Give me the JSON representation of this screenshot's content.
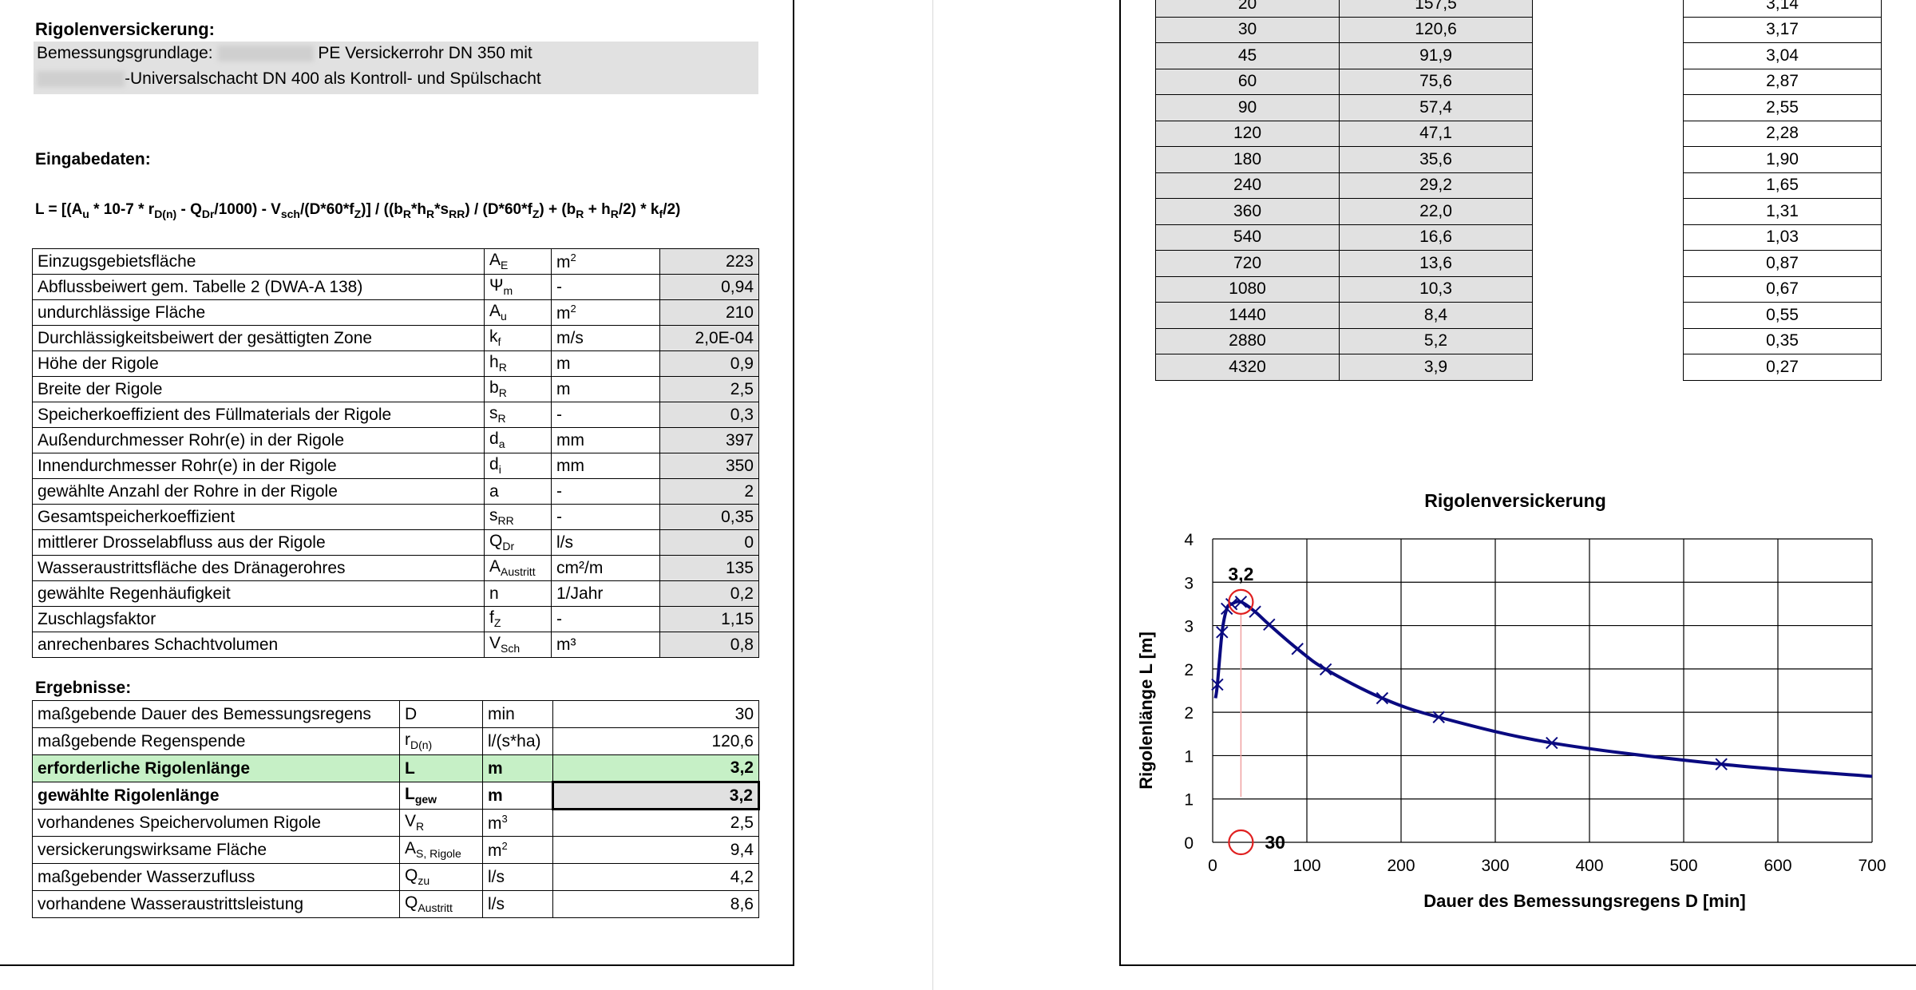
{
  "left": {
    "heading": "Rigolenversickerung:",
    "basis_prefix": "Bemessungsgrundlage:",
    "basis_line1": "PE Versickerrohr DN 350 mit",
    "basis_line2": "-Universalschacht DN 400 als Kontroll- und Spülschacht",
    "input_heading": "Eingabedaten:",
    "formula": "L = [(Au * 10-7 * rD(n) - QDr/1000) - Vsch/(D*60*fZ)] / ((bR*hR*sRR) / (D*60*fZ) + (bR + hR/2) * kf/2)",
    "inputs": [
      {
        "label": "Einzugsgebietsfläche",
        "sym": "A",
        "sub": "E",
        "unit": "m",
        "sup": "2",
        "value": "223"
      },
      {
        "label": "Abflussbeiwert gem. Tabelle 2 (DWA-A 138)",
        "sym": "Ψ",
        "sub": "m",
        "unit": "-",
        "sup": "",
        "value": "0,94"
      },
      {
        "label": "undurchlässige Fläche",
        "sym": "A",
        "sub": "u",
        "unit": "m",
        "sup": "2",
        "value": "210"
      },
      {
        "label": "Durchlässigkeitsbeiwert der gesättigten Zone",
        "sym": "k",
        "sub": "f",
        "unit": "m/s",
        "sup": "",
        "value": "2,0E-04"
      },
      {
        "label": "Höhe der Rigole",
        "sym": "h",
        "sub": "R",
        "unit": "m",
        "sup": "",
        "value": "0,9"
      },
      {
        "label": "Breite der Rigole",
        "sym": "b",
        "sub": "R",
        "unit": "m",
        "sup": "",
        "value": "2,5"
      },
      {
        "label": "Speicherkoeffizient des Füllmaterials der Rigole",
        "sym": "s",
        "sub": "R",
        "unit": "-",
        "sup": "",
        "value": "0,3"
      },
      {
        "label": "Außendurchmesser Rohr(e) in der Rigole",
        "sym": "d",
        "sub": "a",
        "unit": "mm",
        "sup": "",
        "value": "397"
      },
      {
        "label": "Innendurchmesser Rohr(e) in der Rigole",
        "sym": "d",
        "sub": "i",
        "unit": "mm",
        "sup": "",
        "value": "350"
      },
      {
        "label": "gewählte Anzahl der Rohre in der Rigole",
        "sym": "a",
        "sub": "",
        "unit": "-",
        "sup": "",
        "value": "2"
      },
      {
        "label": "Gesamtspeicherkoeffizient",
        "sym": "s",
        "sub": "RR",
        "unit": "-",
        "sup": "",
        "value": "0,35"
      },
      {
        "label": "mittlerer Drosselabfluss aus der Rigole",
        "sym": "Q",
        "sub": "Dr",
        "unit": "l/s",
        "sup": "",
        "value": "0"
      },
      {
        "label": "Wasseraustrittsfläche des Dränagerohres",
        "sym": "A",
        "sub": "Austritt",
        "unit": "cm²/m",
        "sup": "",
        "value": "135"
      },
      {
        "label": "gewählte Regenhäufigkeit",
        "sym": "n",
        "sub": "",
        "unit": "1/Jahr",
        "sup": "",
        "value": "0,2"
      },
      {
        "label": "Zuschlagsfaktor",
        "sym": "f",
        "sub": "Z",
        "unit": "-",
        "sup": "",
        "value": "1,15"
      },
      {
        "label": "anrechenbares Schachtvolumen",
        "sym": "V",
        "sub": "Sch",
        "unit": "m³",
        "sup": "",
        "value": "0,8"
      }
    ],
    "results_heading": "Ergebnisse:",
    "results": [
      {
        "label": "maßgebende Dauer des Bemessungsregens",
        "sym": "D",
        "sub": "",
        "unit": "min",
        "sup": "",
        "value": "30",
        "style": ""
      },
      {
        "label": "maßgebende Regenspende",
        "sym": "r",
        "sub": "D(n)",
        "unit": "l/(s*ha)",
        "sup": "",
        "value": "120,6",
        "style": ""
      },
      {
        "label": "erforderliche Rigolenlänge",
        "sym": "L",
        "sub": "",
        "unit": "m",
        "sup": "",
        "value": "3,2",
        "style": "green"
      },
      {
        "label": "gewählte Rigolenlänge",
        "sym": "L",
        "sub": "gew",
        "unit": "m",
        "sup": "",
        "value": "3,2",
        "style": "bold"
      },
      {
        "label": "vorhandenes Speichervolumen Rigole",
        "sym": "V",
        "sub": "R",
        "unit": "m",
        "sup": "3",
        "value": "2,5",
        "style": ""
      },
      {
        "label": "versickerungswirksame Fläche",
        "sym": "A",
        "sub": "S, Rigole",
        "unit": "m",
        "sup": "2",
        "value": "9,4",
        "style": ""
      },
      {
        "label": "maßgebender Wasserzufluss",
        "sym": "Q",
        "sub": "zu",
        "unit": "l/s",
        "sup": "",
        "value": "4,2",
        "style": ""
      },
      {
        "label": "vorhandene Wasseraustrittsleistung",
        "sym": "Q",
        "sub": "Austritt",
        "unit": "l/s",
        "sup": "",
        "value": "8,6",
        "style": ""
      }
    ]
  },
  "right": {
    "rain_table": [
      {
        "d": "20",
        "r": "157,5",
        "l": "3,14"
      },
      {
        "d": "30",
        "r": "120,6",
        "l": "3,17"
      },
      {
        "d": "45",
        "r": "91,9",
        "l": "3,04"
      },
      {
        "d": "60",
        "r": "75,6",
        "l": "2,87"
      },
      {
        "d": "90",
        "r": "57,4",
        "l": "2,55"
      },
      {
        "d": "120",
        "r": "47,1",
        "l": "2,28"
      },
      {
        "d": "180",
        "r": "35,6",
        "l": "1,90"
      },
      {
        "d": "240",
        "r": "29,2",
        "l": "1,65"
      },
      {
        "d": "360",
        "r": "22,0",
        "l": "1,31"
      },
      {
        "d": "540",
        "r": "16,6",
        "l": "1,03"
      },
      {
        "d": "720",
        "r": "13,6",
        "l": "0,87"
      },
      {
        "d": "1080",
        "r": "10,3",
        "l": "0,67"
      },
      {
        "d": "1440",
        "r": "8,4",
        "l": "0,55"
      },
      {
        "d": "2880",
        "r": "5,2",
        "l": "0,35"
      },
      {
        "d": "4320",
        "r": "3,9",
        "l": "0,27"
      }
    ]
  },
  "chart_data": {
    "type": "line",
    "title": "Rigolenversickerung",
    "xlabel": "Dauer des Bemessungsregens  D [min]",
    "ylabel": "Rigolenlänge L [m]",
    "xlim": [
      0,
      700
    ],
    "ylim": [
      0,
      4
    ],
    "x_ticks": [
      "0",
      "100",
      "200",
      "300",
      "400",
      "500",
      "600",
      "700"
    ],
    "y_ticks": [
      "0",
      "1",
      "1",
      "2",
      "2",
      "3",
      "3",
      "4"
    ],
    "grid": true,
    "marker_points": [
      {
        "x": 5,
        "y": 2.08
      },
      {
        "x": 10,
        "y": 2.77
      },
      {
        "x": 15,
        "y": 3.08
      },
      {
        "x": 20,
        "y": 3.14
      },
      {
        "x": 30,
        "y": 3.17
      },
      {
        "x": 45,
        "y": 3.04
      },
      {
        "x": 60,
        "y": 2.87
      },
      {
        "x": 90,
        "y": 2.55
      },
      {
        "x": 120,
        "y": 2.28
      },
      {
        "x": 180,
        "y": 1.9
      },
      {
        "x": 240,
        "y": 1.65
      },
      {
        "x": 360,
        "y": 1.31
      },
      {
        "x": 540,
        "y": 1.03
      }
    ],
    "curve_points": [
      {
        "x": 3,
        "y": 1.9
      },
      {
        "x": 5,
        "y": 2.08
      },
      {
        "x": 10,
        "y": 2.77
      },
      {
        "x": 15,
        "y": 3.08
      },
      {
        "x": 20,
        "y": 3.14
      },
      {
        "x": 30,
        "y": 3.17
      },
      {
        "x": 45,
        "y": 3.04
      },
      {
        "x": 60,
        "y": 2.87
      },
      {
        "x": 90,
        "y": 2.55
      },
      {
        "x": 120,
        "y": 2.28
      },
      {
        "x": 180,
        "y": 1.9
      },
      {
        "x": 240,
        "y": 1.65
      },
      {
        "x": 360,
        "y": 1.31
      },
      {
        "x": 540,
        "y": 1.03
      },
      {
        "x": 700,
        "y": 0.87
      }
    ],
    "max_point": {
      "x": 30,
      "y": 3.17,
      "label_value": "3,2"
    },
    "x_marker": {
      "x": 30,
      "label": "30"
    }
  }
}
